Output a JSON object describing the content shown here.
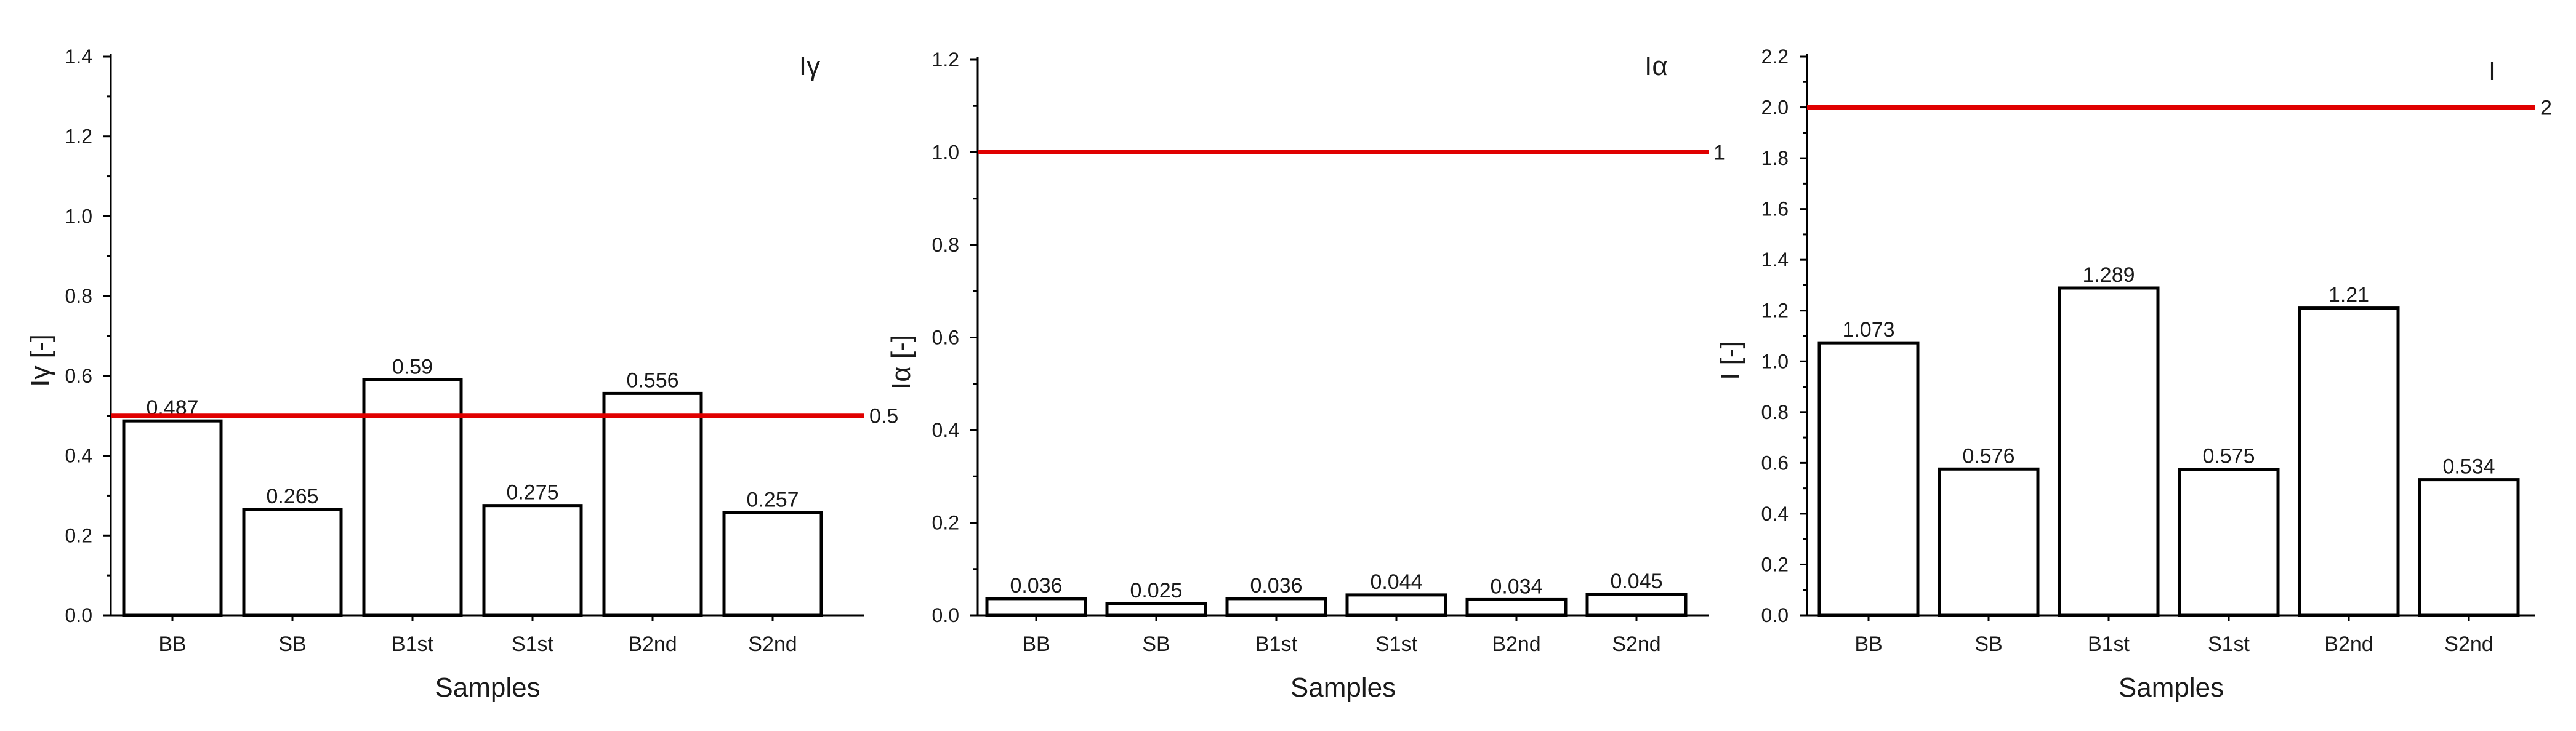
{
  "colors": {
    "reference_line": "#e00000",
    "bar_fill": "#ffffff",
    "bar_stroke": "#000000",
    "text": "#1a1a1a"
  },
  "chart_data": [
    {
      "type": "bar",
      "title": "Iγ",
      "xlabel": "Samples",
      "ylabel": "Iγ [-]",
      "categories": [
        "BB",
        "SB",
        "B1st",
        "S1st",
        "B2nd",
        "S2nd"
      ],
      "values": [
        0.487,
        0.265,
        0.59,
        0.275,
        0.556,
        0.257
      ],
      "value_labels": [
        "0.487",
        "0.265",
        "0.59",
        "0.275",
        "0.556",
        "0.257"
      ],
      "ylim": [
        0,
        1.4
      ],
      "yticks": [
        "0.0",
        "0.2",
        "0.4",
        "0.6",
        "0.8",
        "1.0",
        "1.2",
        "1.4"
      ],
      "reference_line": {
        "value": 0.5,
        "label": "0.5"
      },
      "grid": false,
      "legend": "none"
    },
    {
      "type": "bar",
      "title": "Iα",
      "xlabel": "Samples",
      "ylabel": "Iα [-]",
      "categories": [
        "BB",
        "SB",
        "B1st",
        "S1st",
        "B2nd",
        "S2nd"
      ],
      "values": [
        0.036,
        0.025,
        0.036,
        0.044,
        0.034,
        0.045
      ],
      "value_labels": [
        "0.036",
        "0.025",
        "0.036",
        "0.044",
        "0.034",
        "0.045"
      ],
      "ylim": [
        0,
        1.2
      ],
      "yticks": [
        "0.0",
        "0.2",
        "0.4",
        "0.6",
        "0.8",
        "1.0",
        "1.2"
      ],
      "reference_line": {
        "value": 1,
        "label": "1"
      },
      "grid": false,
      "legend": "none"
    },
    {
      "type": "bar",
      "title": "I",
      "xlabel": "Samples",
      "ylabel": "I [-]",
      "categories": [
        "BB",
        "SB",
        "B1st",
        "S1st",
        "B2nd",
        "S2nd"
      ],
      "values": [
        1.073,
        0.576,
        1.289,
        0.575,
        1.21,
        0.534
      ],
      "value_labels": [
        "1.073",
        "0.576",
        "1.289",
        "0.575",
        "1.21",
        "0.534"
      ],
      "ylim": [
        0,
        2.2
      ],
      "yticks": [
        "0.0",
        "0.2",
        "0.4",
        "0.6",
        "0.8",
        "1.0",
        "1.2",
        "1.4",
        "1.6",
        "1.8",
        "2.0",
        "2.2"
      ],
      "reference_line": {
        "value": 2,
        "label": "2"
      },
      "grid": false,
      "legend": "none"
    }
  ]
}
